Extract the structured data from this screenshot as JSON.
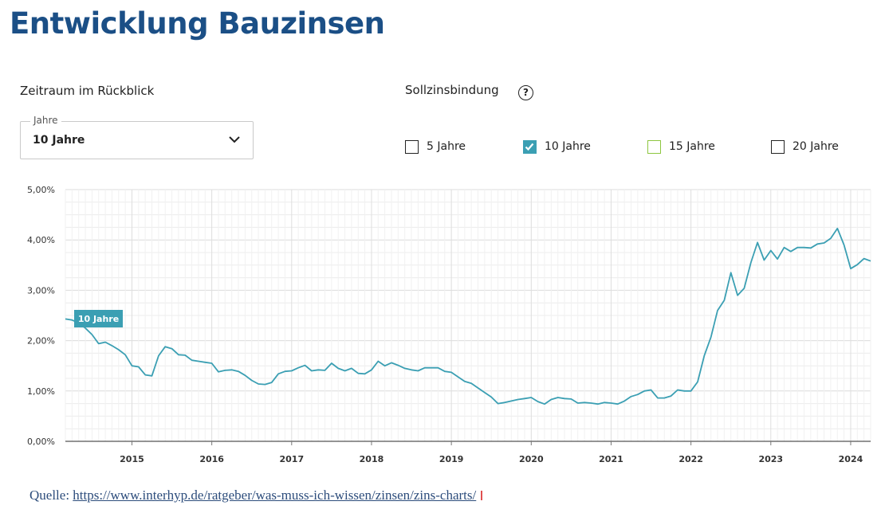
{
  "title": "Entwicklung Bauzinsen",
  "period": {
    "label": "Zeitraum im Rückblick",
    "select_legend": "Jahre",
    "select_value": "10 Jahre"
  },
  "fixation": {
    "label": "Sollzinsbindung",
    "help_glyph": "?",
    "options": [
      {
        "label": "5 Jahre",
        "checked": false,
        "color": "#222222"
      },
      {
        "label": "10 Jahre",
        "checked": true,
        "color": "#3b9fb3"
      },
      {
        "label": "15 Jahre",
        "checked": false,
        "color": "#8dc63f"
      },
      {
        "label": "20 Jahre",
        "checked": false,
        "color": "#222222"
      }
    ]
  },
  "chart_data": {
    "type": "line",
    "title": "",
    "xlabel": "",
    "ylabel": "",
    "ylim": [
      0,
      5
    ],
    "xlim": [
      "2014-03",
      "2024-04"
    ],
    "yticks": [
      "0,00%",
      "1,00%",
      "2,00%",
      "3,00%",
      "4,00%",
      "5,00%"
    ],
    "xticks": [
      "2015",
      "2016",
      "2017",
      "2018",
      "2019",
      "2020",
      "2021",
      "2022",
      "2023",
      "2024"
    ],
    "grid": true,
    "series": [
      {
        "name": "10 Jahre",
        "color": "#3b9fb3",
        "points": [
          [
            "2014-03",
            2.43
          ],
          [
            "2014-04",
            2.41
          ],
          [
            "2014-05",
            2.35
          ],
          [
            "2014-06",
            2.25
          ],
          [
            "2014-07",
            2.12
          ],
          [
            "2014-08",
            1.94
          ],
          [
            "2014-09",
            1.97
          ],
          [
            "2014-10",
            1.9
          ],
          [
            "2014-11",
            1.82
          ],
          [
            "2014-12",
            1.72
          ],
          [
            "2015-01",
            1.5
          ],
          [
            "2015-02",
            1.48
          ],
          [
            "2015-03",
            1.32
          ],
          [
            "2015-04",
            1.3
          ],
          [
            "2015-05",
            1.7
          ],
          [
            "2015-06",
            1.88
          ],
          [
            "2015-07",
            1.84
          ],
          [
            "2015-08",
            1.72
          ],
          [
            "2015-09",
            1.71
          ],
          [
            "2015-10",
            1.61
          ],
          [
            "2015-11",
            1.59
          ],
          [
            "2015-12",
            1.57
          ],
          [
            "2016-01",
            1.55
          ],
          [
            "2016-02",
            1.38
          ],
          [
            "2016-03",
            1.41
          ],
          [
            "2016-04",
            1.42
          ],
          [
            "2016-05",
            1.39
          ],
          [
            "2016-06",
            1.31
          ],
          [
            "2016-07",
            1.21
          ],
          [
            "2016-08",
            1.14
          ],
          [
            "2016-09",
            1.13
          ],
          [
            "2016-10",
            1.17
          ],
          [
            "2016-11",
            1.34
          ],
          [
            "2016-12",
            1.39
          ],
          [
            "2017-01",
            1.4
          ],
          [
            "2017-02",
            1.46
          ],
          [
            "2017-03",
            1.51
          ],
          [
            "2017-04",
            1.4
          ],
          [
            "2017-05",
            1.42
          ],
          [
            "2017-06",
            1.41
          ],
          [
            "2017-07",
            1.55
          ],
          [
            "2017-08",
            1.45
          ],
          [
            "2017-09",
            1.4
          ],
          [
            "2017-10",
            1.45
          ],
          [
            "2017-11",
            1.35
          ],
          [
            "2017-12",
            1.34
          ],
          [
            "2018-01",
            1.42
          ],
          [
            "2018-02",
            1.59
          ],
          [
            "2018-03",
            1.5
          ],
          [
            "2018-04",
            1.56
          ],
          [
            "2018-05",
            1.51
          ],
          [
            "2018-06",
            1.45
          ],
          [
            "2018-07",
            1.42
          ],
          [
            "2018-08",
            1.4
          ],
          [
            "2018-09",
            1.46
          ],
          [
            "2018-10",
            1.46
          ],
          [
            "2018-11",
            1.46
          ],
          [
            "2018-12",
            1.39
          ],
          [
            "2019-01",
            1.37
          ],
          [
            "2019-02",
            1.28
          ],
          [
            "2019-03",
            1.19
          ],
          [
            "2019-04",
            1.15
          ],
          [
            "2019-05",
            1.06
          ],
          [
            "2019-06",
            0.97
          ],
          [
            "2019-07",
            0.88
          ],
          [
            "2019-08",
            0.75
          ],
          [
            "2019-09",
            0.77
          ],
          [
            "2019-10",
            0.8
          ],
          [
            "2019-11",
            0.83
          ],
          [
            "2019-12",
            0.85
          ],
          [
            "2020-01",
            0.87
          ],
          [
            "2020-02",
            0.79
          ],
          [
            "2020-03",
            0.74
          ],
          [
            "2020-04",
            0.83
          ],
          [
            "2020-05",
            0.87
          ],
          [
            "2020-06",
            0.85
          ],
          [
            "2020-07",
            0.84
          ],
          [
            "2020-08",
            0.76
          ],
          [
            "2020-09",
            0.77
          ],
          [
            "2020-10",
            0.76
          ],
          [
            "2020-11",
            0.74
          ],
          [
            "2020-12",
            0.77
          ],
          [
            "2021-01",
            0.76
          ],
          [
            "2021-02",
            0.74
          ],
          [
            "2021-03",
            0.8
          ],
          [
            "2021-04",
            0.89
          ],
          [
            "2021-05",
            0.93
          ],
          [
            "2021-06",
            1.0
          ],
          [
            "2021-07",
            1.02
          ],
          [
            "2021-08",
            0.86
          ],
          [
            "2021-09",
            0.86
          ],
          [
            "2021-10",
            0.9
          ],
          [
            "2021-11",
            1.02
          ],
          [
            "2021-12",
            1.0
          ],
          [
            "2022-01",
            1.0
          ],
          [
            "2022-02",
            1.18
          ],
          [
            "2022-03",
            1.7
          ],
          [
            "2022-04",
            2.07
          ],
          [
            "2022-05",
            2.6
          ],
          [
            "2022-06",
            2.8
          ],
          [
            "2022-07",
            3.35
          ],
          [
            "2022-08",
            2.9
          ],
          [
            "2022-09",
            3.04
          ],
          [
            "2022-10",
            3.55
          ],
          [
            "2022-11",
            3.95
          ],
          [
            "2022-12",
            3.6
          ],
          [
            "2023-01",
            3.79
          ],
          [
            "2023-02",
            3.62
          ],
          [
            "2023-03",
            3.85
          ],
          [
            "2023-04",
            3.77
          ],
          [
            "2023-05",
            3.85
          ],
          [
            "2023-06",
            3.85
          ],
          [
            "2023-07",
            3.84
          ],
          [
            "2023-08",
            3.92
          ],
          [
            "2023-09",
            3.94
          ],
          [
            "2023-10",
            4.03
          ],
          [
            "2023-11",
            4.23
          ],
          [
            "2023-12",
            3.9
          ],
          [
            "2024-01",
            3.43
          ],
          [
            "2024-02",
            3.51
          ],
          [
            "2024-03",
            3.63
          ],
          [
            "2024-04",
            3.58
          ]
        ]
      }
    ],
    "annotation": "10 Jahre"
  },
  "source": {
    "prefix": "Quelle: ",
    "link": "https://www.interhyp.de/ratgeber/was-muss-ich-wissen/zinsen/zins-charts/"
  }
}
